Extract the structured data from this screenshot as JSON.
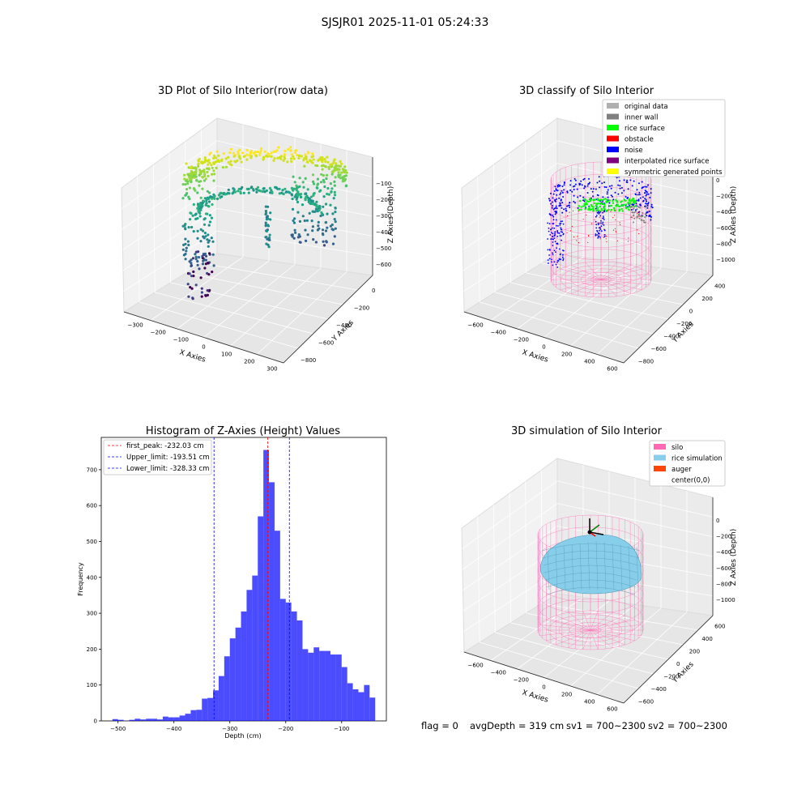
{
  "figure": {
    "title": "SJSJR01 2025-11-01 05:24:33"
  },
  "panel1": {
    "title": "3D Plot of Silo Interior(row data)",
    "xlabel": "X Axies",
    "ylabel": "Y Axies",
    "zlabel": "Z Axies (Depth)",
    "xticks": [
      "−300",
      "−200",
      "−100",
      "0",
      "100",
      "200",
      "300"
    ],
    "yticks": [
      "−800",
      "−600",
      "−400",
      "−200",
      "0"
    ],
    "zticks": [
      "−100",
      "−200",
      "−300",
      "−400",
      "−500",
      "−600"
    ],
    "colormap": "viridis"
  },
  "panel2": {
    "title": "3D classify of Silo Interior",
    "xlabel": "X Axies",
    "ylabel": "Y Axies",
    "zlabel": "Z Axies (Depth)",
    "xticks": [
      "−600",
      "−400",
      "−200",
      "0",
      "200",
      "400",
      "600"
    ],
    "yticks": [
      "−800",
      "−600",
      "−400",
      "−200",
      "0",
      "200",
      "400"
    ],
    "zticks": [
      "0",
      "−200",
      "−400",
      "−600",
      "−800",
      "−1000"
    ],
    "legend": [
      {
        "label": "original data",
        "color": "#b0b0b0"
      },
      {
        "label": "inner wall",
        "color": "#808080"
      },
      {
        "label": "rice surface",
        "color": "#00ff00"
      },
      {
        "label": "obstacle",
        "color": "#ff0000"
      },
      {
        "label": "noise",
        "color": "#0000ff"
      },
      {
        "label": "interpolated rice surface",
        "color": "#800080"
      },
      {
        "label": "symmetric generated points",
        "color": "#ffff00"
      }
    ]
  },
  "panel3": {
    "title": "Histogram of Z-Axies (Height) Values",
    "xlabel": "Depth (cm)",
    "ylabel": "Frequency",
    "legend": [
      {
        "label": "first_peak: -232.03 cm",
        "color": "#ff0000"
      },
      {
        "label": "Upper_limit: -193.51 cm",
        "color": "#0000ff"
      },
      {
        "label": "Lower_limit: -328.33 cm",
        "color": "#0000ff"
      }
    ]
  },
  "panel4": {
    "title": "3D simulation of Silo Interior",
    "xlabel": "X Axies",
    "ylabel": "Y Axies",
    "zlabel": "Z Axies (Depth)",
    "xticks": [
      "−600",
      "−400",
      "−200",
      "0",
      "200",
      "400",
      "600"
    ],
    "yticks": [
      "−600",
      "−400",
      "−200",
      "0",
      "200",
      "400",
      "600"
    ],
    "zticks": [
      "0",
      "−200",
      "−400",
      "−600",
      "−800",
      "−1000"
    ],
    "legend": [
      {
        "label": "silo",
        "color": "#ff69b4"
      },
      {
        "label": "rice simulation",
        "color": "#87ceeb"
      },
      {
        "label": "auger",
        "color": "#ff4500"
      },
      {
        "label": "center(0,0)",
        "color": ""
      }
    ]
  },
  "footer": {
    "flag": "flag = 0",
    "avgDepth": "avgDepth = 319 cm",
    "sv1": "sv1 = 700~2300",
    "sv2": "sv2 = 700~2300"
  },
  "chart_data": [
    {
      "type": "scatter",
      "title": "3D Plot of Silo Interior(row data)",
      "xlabel": "X Axies",
      "ylabel": "Y Axies",
      "zlabel": "Z Axies (Depth)",
      "xlim": [
        -350,
        350
      ],
      "ylim": [
        -850,
        150
      ],
      "zlim": [
        -650,
        -50
      ],
      "colormap": "viridis"
    },
    {
      "type": "scatter",
      "title": "3D classify of Silo Interior",
      "xlabel": "X Axies",
      "ylabel": "Y Axies",
      "zlabel": "Z Axies (Depth)",
      "xlim": [
        -650,
        650
      ],
      "ylim": [
        -850,
        450
      ],
      "zlim": [
        -1100,
        50
      ],
      "legend_position": "top-right",
      "series": [
        {
          "name": "original data",
          "color": "#b0b0b0"
        },
        {
          "name": "inner wall",
          "color": "#808080"
        },
        {
          "name": "rice surface",
          "color": "#00ff00"
        },
        {
          "name": "obstacle",
          "color": "#ff0000"
        },
        {
          "name": "noise",
          "color": "#0000ff"
        },
        {
          "name": "interpolated rice surface",
          "color": "#800080"
        },
        {
          "name": "symmetric generated points",
          "color": "#ffff00"
        }
      ]
    },
    {
      "type": "bar",
      "title": "Histogram of Z-Axies (Height) Values",
      "xlabel": "Depth (cm)",
      "ylabel": "Frequency",
      "xlim": [
        -530,
        -20
      ],
      "ylim": [
        0,
        790
      ],
      "xticks": [
        -500,
        -400,
        -300,
        -200,
        -100
      ],
      "yticks": [
        0,
        100,
        200,
        300,
        400,
        500,
        600,
        700
      ],
      "bin_width": 10,
      "x": [
        -510,
        -500,
        -490,
        -480,
        -470,
        -460,
        -450,
        -440,
        -430,
        -420,
        -410,
        -400,
        -390,
        -380,
        -370,
        -360,
        -350,
        -340,
        -330,
        -320,
        -310,
        -300,
        -290,
        -280,
        -270,
        -260,
        -250,
        -240,
        -230,
        -220,
        -210,
        -200,
        -190,
        -180,
        -170,
        -160,
        -150,
        -140,
        -130,
        -120,
        -110,
        -100,
        -90,
        -80,
        -70,
        -60,
        -50,
        -40
      ],
      "values": [
        5,
        3,
        0,
        3,
        6,
        4,
        6,
        6,
        4,
        12,
        10,
        10,
        15,
        20,
        30,
        31,
        62,
        64,
        85,
        125,
        180,
        230,
        260,
        305,
        365,
        405,
        570,
        755,
        665,
        530,
        340,
        330,
        305,
        280,
        200,
        190,
        205,
        195,
        195,
        185,
        185,
        150,
        105,
        88,
        80,
        100,
        65,
        0
      ],
      "color": "#0000ff",
      "lines": [
        {
          "label": "first_peak: -232.03 cm",
          "x": -232.03,
          "color": "#ff0000",
          "style": "dashed"
        },
        {
          "label": "Upper_limit: -193.51 cm",
          "x": -193.51,
          "color": "#0000ff",
          "style": "dashed"
        },
        {
          "label": "Lower_limit: -328.33 cm",
          "x": -328.33,
          "color": "#0000ff",
          "style": "dashed"
        }
      ],
      "legend_position": "top-left"
    },
    {
      "type": "area",
      "title": "3D simulation of Silo Interior",
      "xlabel": "X Axies",
      "ylabel": "Y Axies",
      "zlabel": "Z Axies (Depth)",
      "xlim": [
        -650,
        650
      ],
      "ylim": [
        -650,
        650
      ],
      "zlim": [
        -1100,
        100
      ],
      "legend_position": "top-right",
      "series": [
        {
          "name": "silo",
          "color": "#ff69b4"
        },
        {
          "name": "rice simulation",
          "color": "#87ceeb"
        },
        {
          "name": "auger",
          "color": "#ff4500"
        },
        {
          "name": "center(0,0)"
        }
      ]
    }
  ]
}
